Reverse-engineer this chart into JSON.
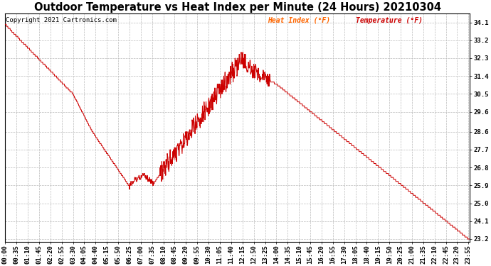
{
  "title": "Outdoor Temperature vs Heat Index per Minute (24 Hours) 20210304",
  "copyright": "Copyright 2021 Cartronics.com",
  "legend_heat": "Heat Index (°F)",
  "legend_temp": "Temperature (°F)",
  "legend_heat_color": "#ff6600",
  "legend_temp_color": "#cc0000",
  "line_color": "#cc0000",
  "title_color": "#000000",
  "copyright_color": "#000000",
  "background_color": "#ffffff",
  "grid_color": "#bbbbbb",
  "ylim_min": 23.05,
  "ylim_max": 34.55,
  "yticks": [
    23.2,
    24.1,
    25.0,
    25.9,
    26.8,
    27.7,
    28.6,
    29.6,
    30.5,
    31.4,
    32.3,
    33.2,
    34.1
  ],
  "title_fontsize": 10.5,
  "tick_fontsize": 6.5,
  "copyright_fontsize": 6.5
}
